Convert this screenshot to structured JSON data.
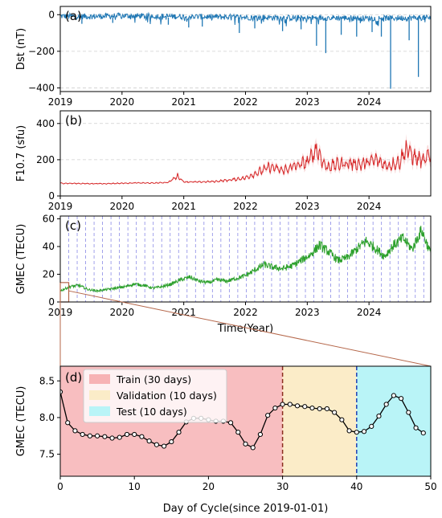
{
  "colors": {
    "dst": "#1f77b4",
    "f107": "#d62728",
    "gmec": "#2ca02c",
    "zoom_connector": "#b5674a",
    "train_bg": "#f7b3b5",
    "validation_bg": "#fbecc8",
    "test_bg": "#b9f4f7",
    "train_line": "#8b2e1f",
    "test_line": "#1f3fb5",
    "cycle_lines": "#8a8ae6"
  },
  "chart_data": [
    {
      "type": "line",
      "panel_label": "(a)",
      "ylabel": "Dst (nT)",
      "xlabel": "",
      "x_ticks": [
        "2019",
        "2020",
        "2021",
        "2022",
        "2023",
        "2024"
      ],
      "y_ticks": [
        "0",
        "−200",
        "−400"
      ],
      "xlim": [
        2019.0,
        2025.0
      ],
      "ylim": [
        -420,
        45
      ],
      "grid": "horizontal dashed",
      "series": [
        {
          "x": [
            2019.0,
            2019.5,
            2020.0,
            2020.5,
            2021.0,
            2021.5,
            2022.0,
            2022.5,
            2023.0,
            2023.5,
            2024.0,
            2024.5,
            2025.0
          ],
          "values": [
            -8,
            -10,
            -6,
            -8,
            -10,
            -12,
            -14,
            -16,
            -18,
            -17,
            -20,
            -18,
            -16
          ]
        }
      ],
      "spikes": {
        "x": [
          2019.35,
          2019.85,
          2020.75,
          2021.08,
          2021.3,
          2021.9,
          2022.15,
          2022.6,
          2022.9,
          2023.15,
          2023.3,
          2023.55,
          2023.8,
          2024.05,
          2024.2,
          2024.35,
          2024.65,
          2024.8
        ],
        "values": [
          -50,
          -45,
          -55,
          -70,
          -65,
          -100,
          -75,
          -90,
          -80,
          -170,
          -210,
          -110,
          -120,
          -95,
          -120,
          -405,
          -140,
          -340
        ]
      }
    },
    {
      "type": "line",
      "panel_label": "(b)",
      "ylabel": "F10.7 (sfu)",
      "xlabel": "",
      "x_ticks": [
        "2019",
        "2020",
        "2021",
        "2022",
        "2023",
        "2024"
      ],
      "y_ticks": [
        "0",
        "200",
        "400"
      ],
      "xlim": [
        2019.0,
        2025.0
      ],
      "ylim": [
        0,
        470
      ],
      "grid": "horizontal dashed",
      "series": [
        {
          "x": [
            2019.0,
            2019.25,
            2019.5,
            2019.75,
            2020.0,
            2020.25,
            2020.5,
            2020.75,
            2020.9,
            2021.0,
            2021.25,
            2021.5,
            2021.75,
            2022.0,
            2022.2,
            2022.4,
            2022.6,
            2022.8,
            2023.0,
            2023.15,
            2023.3,
            2023.5,
            2023.7,
            2023.9,
            2024.1,
            2024.3,
            2024.5,
            2024.6,
            2024.75,
            2024.9,
            2025.0
          ],
          "values": [
            70,
            69,
            68,
            68,
            70,
            72,
            71,
            75,
            110,
            78,
            77,
            80,
            88,
            100,
            130,
            160,
            140,
            165,
            185,
            260,
            160,
            175,
            180,
            175,
            200,
            165,
            190,
            260,
            210,
            190,
            240
          ]
        }
      ]
    },
    {
      "type": "line",
      "panel_label": "(c)",
      "ylabel": "GMEC (TECU)",
      "xlabel": "Time(Year)",
      "x_ticks": [
        "2019",
        "2020",
        "2021",
        "2022",
        "2023",
        "2024"
      ],
      "y_ticks": [
        "0",
        "20",
        "40",
        "60"
      ],
      "xlim": [
        2019.0,
        2025.0
      ],
      "ylim": [
        0,
        62
      ],
      "grid": "vertical dashed (50-day cycles)",
      "series": [
        {
          "x": [
            2019.0,
            2019.15,
            2019.3,
            2019.45,
            2019.6,
            2019.75,
            2019.9,
            2020.05,
            2020.2,
            2020.35,
            2020.5,
            2020.65,
            2020.8,
            2020.95,
            2021.1,
            2021.25,
            2021.4,
            2021.55,
            2021.7,
            2021.85,
            2022.0,
            2022.15,
            2022.3,
            2022.45,
            2022.6,
            2022.75,
            2022.9,
            2023.05,
            2023.2,
            2023.35,
            2023.5,
            2023.65,
            2023.8,
            2023.95,
            2024.1,
            2024.25,
            2024.4,
            2024.55,
            2024.7,
            2024.85,
            2025.0
          ],
          "values": [
            8,
            11,
            12,
            9,
            8,
            9,
            10,
            11,
            13,
            12,
            10,
            11,
            13,
            16,
            18,
            15,
            14,
            16,
            15,
            17,
            19,
            23,
            27,
            25,
            24,
            26,
            30,
            34,
            41,
            36,
            30,
            32,
            38,
            44,
            39,
            33,
            41,
            46,
            38,
            52,
            35
          ]
        }
      ]
    },
    {
      "type": "line",
      "panel_label": "(d)",
      "ylabel": "GMEC (TECU)",
      "xlabel": "Day of Cycle(since 2019-01-01)",
      "x_ticks": [
        "0",
        "10",
        "20",
        "30",
        "40",
        "50"
      ],
      "y_ticks": [
        "7.5",
        "8.0",
        "8.5"
      ],
      "xlim": [
        0,
        50
      ],
      "ylim": [
        7.2,
        8.7
      ],
      "legend": {
        "placement": "top-left",
        "entries": [
          "Train (30 days)",
          "Validation (10 days)",
          "Test (10 days)"
        ]
      },
      "split_lines": [
        30,
        40
      ],
      "series": [
        {
          "x": [
            0,
            1,
            2,
            3,
            4,
            5,
            6,
            7,
            8,
            9,
            10,
            11,
            12,
            13,
            14,
            15,
            16,
            17,
            18,
            19,
            20,
            21,
            22,
            23,
            24,
            25,
            26,
            27,
            28,
            29,
            30,
            31,
            32,
            33,
            34,
            35,
            36,
            37,
            38,
            39,
            40,
            41,
            42,
            43,
            44,
            45,
            46,
            47,
            48,
            49
          ],
          "values": [
            8.35,
            7.93,
            7.82,
            7.77,
            7.75,
            7.75,
            7.74,
            7.72,
            7.73,
            7.77,
            7.77,
            7.74,
            7.68,
            7.63,
            7.61,
            7.67,
            7.8,
            7.94,
            7.99,
            7.99,
            7.97,
            7.95,
            7.95,
            7.93,
            7.8,
            7.64,
            7.59,
            7.77,
            8.03,
            8.13,
            8.18,
            8.18,
            8.16,
            8.15,
            8.13,
            8.12,
            8.12,
            8.07,
            7.97,
            7.82,
            7.8,
            7.81,
            7.88,
            8.02,
            8.18,
            8.3,
            8.26,
            8.07,
            7.86,
            7.79
          ]
        }
      ]
    }
  ]
}
